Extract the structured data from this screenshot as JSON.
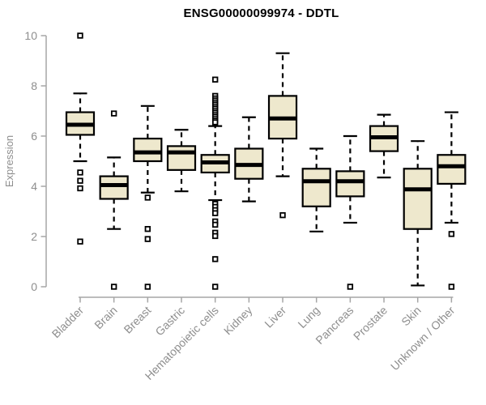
{
  "chart_data": {
    "type": "boxplot",
    "title": "ENSG00000099974 - DDTL",
    "xlabel": "",
    "ylabel": "Expression",
    "ylim": [
      0,
      10
    ],
    "yticks": [
      0,
      2,
      4,
      6,
      8,
      10
    ],
    "grid": false,
    "legend": false,
    "categories": [
      "Bladder",
      "Brain",
      "Breast",
      "Gastric",
      "Hematopoietic cells",
      "Kidney",
      "Liver",
      "Lung",
      "Pancreas",
      "Prostate",
      "Skin",
      "Unknown / Other"
    ],
    "boxes": [
      {
        "category": "Bladder",
        "whisker_low": 5.0,
        "q1": 6.05,
        "median": 6.45,
        "q3": 6.95,
        "whisker_high": 7.7,
        "outliers": [
          10.0,
          4.55,
          4.22,
          3.92,
          1.8
        ]
      },
      {
        "category": "Brain",
        "whisker_low": 2.3,
        "q1": 3.5,
        "median": 4.05,
        "q3": 4.4,
        "whisker_high": 5.15,
        "outliers": [
          6.9,
          0.0
        ]
      },
      {
        "category": "Breast",
        "whisker_low": 3.75,
        "q1": 5.0,
        "median": 5.35,
        "q3": 5.9,
        "whisker_high": 7.2,
        "outliers": [
          3.55,
          2.3,
          1.9,
          0.0
        ]
      },
      {
        "category": "Gastric",
        "whisker_low": 3.8,
        "q1": 4.65,
        "median": 5.35,
        "q3": 5.6,
        "whisker_high": 6.25,
        "outliers": []
      },
      {
        "category": "Hematopoietic cells",
        "whisker_low": 3.45,
        "q1": 4.55,
        "median": 4.95,
        "q3": 5.25,
        "whisker_high": 6.4,
        "outliers": [
          8.25,
          7.6,
          7.5,
          7.42,
          7.34,
          7.26,
          7.18,
          7.1,
          7.02,
          6.94,
          6.86,
          6.78,
          6.7,
          6.62,
          6.55,
          3.3,
          3.18,
          3.05,
          2.93,
          2.6,
          2.47,
          2.15,
          2.02,
          1.1,
          0.0
        ]
      },
      {
        "category": "Kidney",
        "whisker_low": 3.4,
        "q1": 4.3,
        "median": 4.85,
        "q3": 5.5,
        "whisker_high": 6.75,
        "outliers": []
      },
      {
        "category": "Liver",
        "whisker_low": 4.4,
        "q1": 5.9,
        "median": 6.7,
        "q3": 7.6,
        "whisker_high": 9.3,
        "outliers": [
          2.85
        ]
      },
      {
        "category": "Lung",
        "whisker_low": 2.2,
        "q1": 3.2,
        "median": 4.2,
        "q3": 4.7,
        "whisker_high": 5.5,
        "outliers": []
      },
      {
        "category": "Pancreas",
        "whisker_low": 2.55,
        "q1": 3.6,
        "median": 4.2,
        "q3": 4.6,
        "whisker_high": 6.0,
        "outliers": [
          0.0
        ]
      },
      {
        "category": "Prostate",
        "whisker_low": 4.35,
        "q1": 5.4,
        "median": 5.95,
        "q3": 6.4,
        "whisker_high": 6.85,
        "outliers": []
      },
      {
        "category": "Skin",
        "whisker_low": 0.05,
        "q1": 2.3,
        "median": 3.88,
        "q3": 4.7,
        "whisker_high": 5.8,
        "outliers": []
      },
      {
        "category": "Unknown / Other",
        "whisker_low": 2.55,
        "q1": 4.1,
        "median": 4.8,
        "q3": 5.25,
        "whisker_high": 6.95,
        "outliers": [
          2.1,
          0.0
        ]
      }
    ],
    "colors": {
      "box_fill": "#EEE8CD",
      "box_stroke": "#000000",
      "median": "#000000",
      "whisker": "#000000",
      "outlier_stroke": "#000000",
      "outlier_fill": "#ffffff",
      "axis": "#A6A6A6",
      "tick_label": "#8E8E8E",
      "title": "#000000"
    }
  }
}
